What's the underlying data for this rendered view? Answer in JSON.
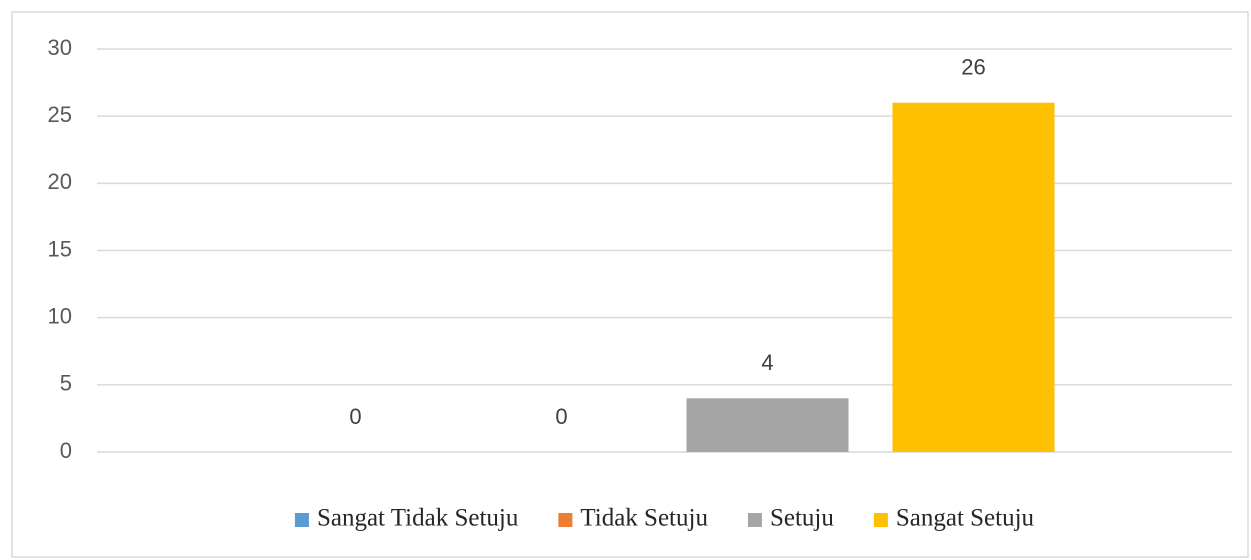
{
  "chart_data": {
    "type": "bar",
    "categories": [
      null
    ],
    "series": [
      {
        "name": "Sangat Tidak Setuju",
        "color": "#5b9bd5",
        "values": [
          0
        ]
      },
      {
        "name": "Tidak Setuju",
        "color": "#ed7d31",
        "values": [
          0
        ]
      },
      {
        "name": "Setuju",
        "color": "#a5a5a5",
        "values": [
          4
        ]
      },
      {
        "name": "Sangat Setuju",
        "color": "#ffc000",
        "values": [
          26
        ]
      }
    ],
    "ylim": [
      0,
      30
    ],
    "yticks": [
      0,
      5,
      10,
      15,
      20,
      25,
      30
    ],
    "grid": true,
    "legend": "bottom"
  }
}
